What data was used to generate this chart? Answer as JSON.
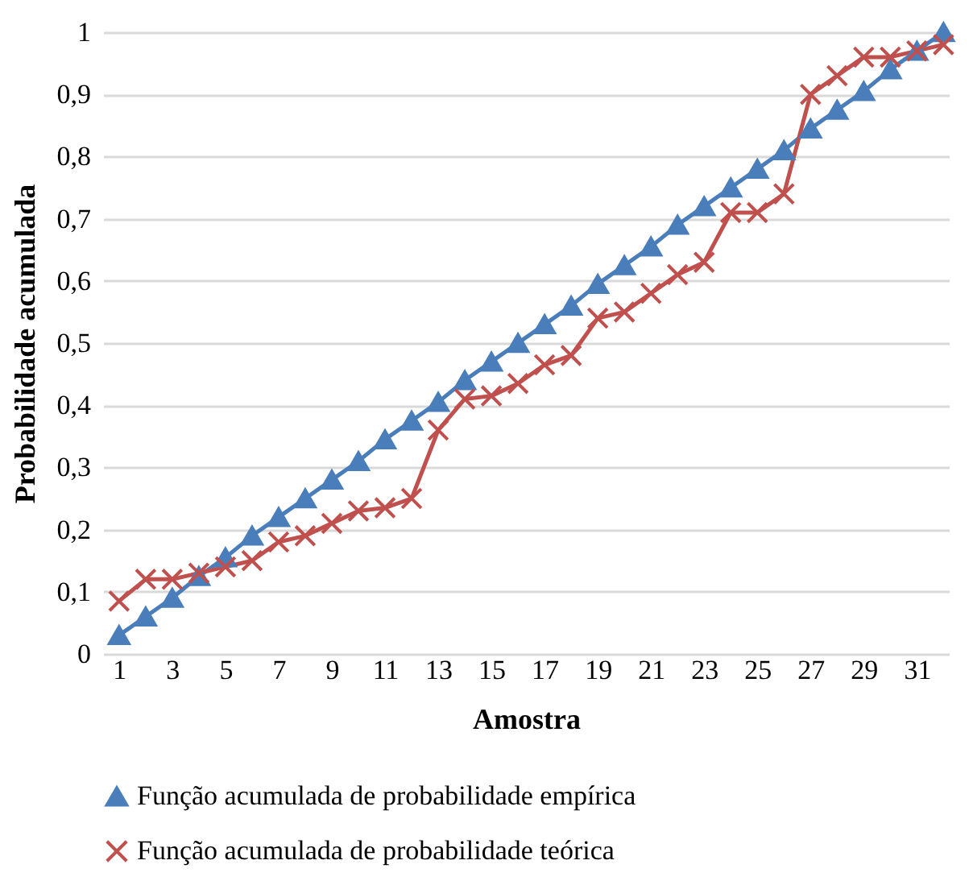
{
  "chart_data": {
    "type": "line",
    "xlabel": "Amostra",
    "ylabel": "Probabilidade acumulada",
    "x": [
      1,
      2,
      3,
      4,
      5,
      6,
      7,
      8,
      9,
      10,
      11,
      12,
      13,
      14,
      15,
      16,
      17,
      18,
      19,
      20,
      21,
      22,
      23,
      24,
      25,
      26,
      27,
      28,
      29,
      30,
      31,
      32
    ],
    "xlim": [
      0.4,
      32.2
    ],
    "xticks": [
      1,
      3,
      5,
      7,
      9,
      11,
      13,
      15,
      17,
      19,
      21,
      23,
      25,
      27,
      29,
      31
    ],
    "series": [
      {
        "name": "Função acumulada de probabilidade empírica",
        "color": "#4a7ebb",
        "marker": "triangle",
        "values": [
          0.03,
          0.06,
          0.09,
          0.125,
          0.155,
          0.19,
          0.22,
          0.25,
          0.28,
          0.31,
          0.345,
          0.375,
          0.405,
          0.44,
          0.47,
          0.5,
          0.53,
          0.56,
          0.595,
          0.625,
          0.655,
          0.69,
          0.72,
          0.75,
          0.78,
          0.81,
          0.845,
          0.875,
          0.905,
          0.94,
          0.97,
          1
        ]
      },
      {
        "name": "Função acumulada de probabilidade teórica",
        "color": "#c0504d",
        "marker": "cross",
        "values": [
          0.085,
          0.12,
          0.12,
          0.13,
          0.14,
          0.15,
          0.18,
          0.19,
          0.21,
          0.23,
          0.235,
          0.25,
          0.36,
          0.41,
          0.415,
          0.435,
          0.465,
          0.48,
          0.54,
          0.55,
          0.58,
          0.61,
          0.63,
          0.71,
          0.71,
          0.74,
          0.9,
          0.93,
          0.96,
          0.96,
          0.97,
          0.98
        ]
      }
    ],
    "ylim": [
      0,
      1
    ],
    "yticks": [
      0,
      {
        "value": 0.1,
        "label": "0,1"
      },
      {
        "value": 0.2,
        "label": "0,2"
      },
      {
        "value": 0.3,
        "label": "0,3"
      },
      {
        "value": 0.4,
        "label": "0,4"
      },
      {
        "value": 0.5,
        "label": "0,5"
      },
      {
        "value": 0.6,
        "label": "0,6"
      },
      {
        "value": 0.7,
        "label": "0,7"
      },
      {
        "value": 0.8,
        "label": "0,8"
      },
      {
        "value": 0.9,
        "label": "0,9"
      },
      1
    ],
    "grid": "y",
    "legend": "bottom"
  }
}
